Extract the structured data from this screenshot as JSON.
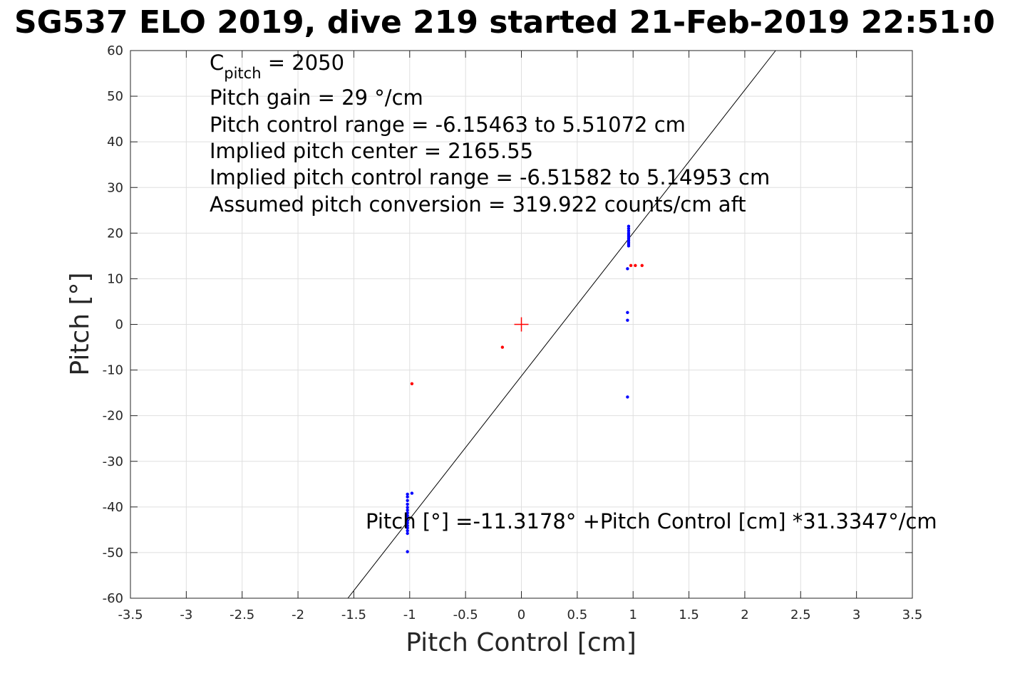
{
  "chart_data": {
    "type": "scatter",
    "title": "SG537 ELO 2019, dive 219 started 21-Feb-2019 22:51:0",
    "xlabel": "Pitch Control [cm]",
    "ylabel": "Pitch [°]",
    "xlim": [
      -3.5,
      3.5
    ],
    "ylim": [
      -60,
      60
    ],
    "x_ticks": [
      -3.5,
      -3,
      -2.5,
      -2,
      -1.5,
      -1,
      -0.5,
      0,
      0.5,
      1,
      1.5,
      2,
      2.5,
      3,
      3.5
    ],
    "x_tick_labels": [
      "-3.5",
      "-3",
      "-2.5",
      "-2",
      "-1.5",
      "-1",
      "-0.5",
      "0",
      "0.5",
      "1",
      "1.5",
      "2",
      "2.5",
      "3",
      "3.5"
    ],
    "y_ticks": [
      60,
      50,
      40,
      30,
      20,
      10,
      0,
      -10,
      -20,
      -30,
      -40,
      -50,
      -60
    ],
    "y_tick_labels": [
      "60",
      "50",
      "40",
      "30",
      "20",
      "10",
      "0",
      "-10",
      "-20",
      "-30",
      "-40",
      "-50",
      "-60"
    ],
    "grid": true,
    "annotations": {
      "cpitch_main": "C",
      "cpitch_sub": "pitch",
      "cpitch_value": " = 2050",
      "lines": [
        "Pitch gain = 29 °/cm",
        "Pitch control range = -6.15463 to 5.51072 cm",
        "Implied pitch center = 2165.55",
        "Implied pitch control range = -6.51582 to 5.14953 cm",
        "Assumed pitch conversion = 319.922 counts/cm aft"
      ],
      "fit_equation": "Pitch [°] =-11.3178° +Pitch Control [cm] *31.3347°/cm"
    },
    "fit_line": {
      "intercept": -11.3178,
      "slope": 31.3347,
      "color": "#000000"
    },
    "center_marker": {
      "x": 0,
      "y": 0,
      "color": "#ff0000",
      "marker": "plus"
    },
    "series": [
      {
        "color": "#0000ff",
        "points": [
          [
            -1.02,
            -37.2
          ],
          [
            -1.02,
            -37.8
          ],
          [
            -1.02,
            -38.6
          ],
          [
            -1.02,
            -39.4
          ],
          [
            -1.02,
            -40.1
          ],
          [
            -1.02,
            -40.7
          ],
          [
            -1.02,
            -41.3
          ],
          [
            -1.02,
            -41.9
          ],
          [
            -1.02,
            -42.4
          ],
          [
            -1.02,
            -43.0
          ],
          [
            -1.02,
            -43.5
          ],
          [
            -1.02,
            -44.1
          ],
          [
            -1.02,
            -44.6
          ],
          [
            -1.02,
            -45.2
          ],
          [
            -1.02,
            -45.8
          ],
          [
            -1.02,
            -49.8
          ],
          [
            -0.98,
            -37.0
          ],
          [
            0.96,
            21.5
          ],
          [
            0.96,
            21.0
          ],
          [
            0.96,
            20.5
          ],
          [
            0.96,
            20.0
          ],
          [
            0.96,
            19.6
          ],
          [
            0.96,
            19.2
          ],
          [
            0.96,
            18.8
          ],
          [
            0.96,
            18.4
          ],
          [
            0.96,
            18.0
          ],
          [
            0.96,
            17.6
          ],
          [
            0.96,
            17.2
          ],
          [
            0.95,
            12.2
          ],
          [
            0.95,
            2.6
          ],
          [
            0.95,
            0.9
          ],
          [
            0.95,
            -15.9
          ]
        ]
      },
      {
        "color": "#ff0000",
        "points": [
          [
            -0.98,
            -13.0
          ],
          [
            -0.17,
            -5.0
          ],
          [
            0.98,
            12.9
          ],
          [
            1.02,
            12.9
          ],
          [
            1.08,
            12.9
          ]
        ]
      }
    ]
  }
}
